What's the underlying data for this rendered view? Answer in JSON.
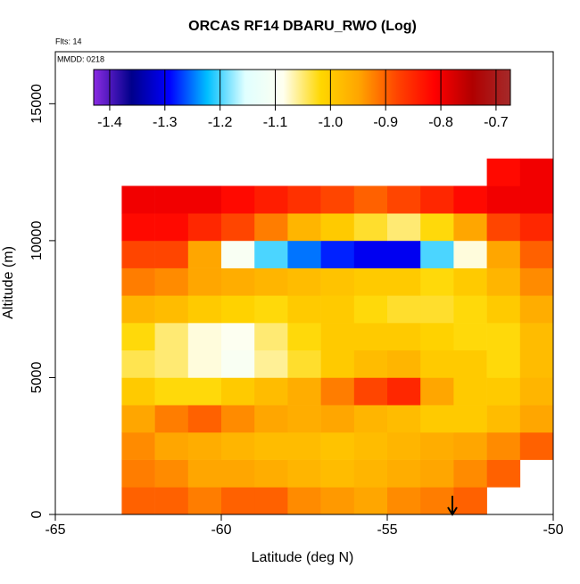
{
  "chart_data": {
    "type": "heatmap",
    "title": "ORCAS RF14 DBARU_RWO (Log)",
    "annotations": [
      "Flts: 14",
      "MMDD: 0218"
    ],
    "x_label": "Latitude (deg N)",
    "y_label": "Altitude (m)",
    "xlim": [
      -65,
      -50
    ],
    "xticks": [
      -65,
      -60,
      -55,
      -50
    ],
    "ylim": [
      0,
      16900
    ],
    "yticks": [
      0,
      5000,
      10000,
      15000
    ],
    "xbins": [
      -63,
      -62,
      -61,
      -60,
      -59,
      -58,
      -57,
      -56,
      -55,
      -54,
      -53,
      -52,
      -51,
      -50
    ],
    "ybins": [
      0,
      1000,
      2000,
      3000,
      4000,
      5000,
      6000,
      7000,
      8000,
      9000,
      10000,
      11000,
      12000,
      13000
    ],
    "z": [
      [
        -0.9,
        -0.9,
        -0.92,
        -0.9,
        -0.9,
        -0.93,
        -0.94,
        -0.95,
        -0.93,
        -0.92,
        -0.9,
        null,
        null
      ],
      [
        -0.92,
        -0.93,
        -0.95,
        -0.95,
        -0.96,
        -0.97,
        -0.98,
        -0.97,
        -0.96,
        -0.95,
        -0.93,
        -0.9,
        null
      ],
      [
        -0.93,
        -0.95,
        -0.96,
        -0.97,
        -0.98,
        -0.98,
        -0.99,
        -0.98,
        -0.97,
        -0.96,
        -0.95,
        -0.93,
        -0.9
      ],
      [
        -0.95,
        -0.92,
        -0.9,
        -0.93,
        -0.95,
        -0.96,
        -0.95,
        -0.97,
        -0.98,
        -1.0,
        -1.0,
        -0.98,
        -0.95
      ],
      [
        -1.0,
        -1.02,
        -1.02,
        -1.0,
        -0.98,
        -0.96,
        -0.92,
        -0.88,
        -0.85,
        -0.95,
        -1.0,
        -1.0,
        -0.97
      ],
      [
        -1.04,
        -1.05,
        -1.08,
        -1.1,
        -1.06,
        -1.03,
        -1.0,
        -0.98,
        -0.97,
        -1.0,
        -1.0,
        -1.02,
        -0.98
      ],
      [
        -1.02,
        -1.05,
        -1.08,
        -1.09,
        -1.05,
        -1.02,
        -1.0,
        -1.0,
        -1.0,
        -1.01,
        -1.02,
        -1.02,
        -0.98
      ],
      [
        -0.97,
        -0.98,
        -1.0,
        -1.01,
        -1.02,
        -1.0,
        -1.0,
        -1.02,
        -1.03,
        -1.03,
        -1.02,
        -1.0,
        -0.96
      ],
      [
        -0.92,
        -0.93,
        -0.95,
        -0.96,
        -0.97,
        -0.98,
        -0.99,
        -1.0,
        -1.0,
        -1.02,
        -1.0,
        -0.97,
        -0.93
      ],
      [
        -0.88,
        -0.88,
        -0.95,
        -1.1,
        -1.2,
        -1.25,
        -1.28,
        -1.3,
        -1.3,
        -1.2,
        -1.08,
        -0.95,
        -0.9
      ],
      [
        -0.82,
        -0.82,
        -0.85,
        -0.88,
        -0.92,
        -0.97,
        -1.0,
        -1.03,
        -1.05,
        -1.02,
        -0.95,
        -0.88,
        -0.85
      ],
      [
        -0.8,
        -0.8,
        -0.8,
        -0.82,
        -0.84,
        -0.86,
        -0.88,
        -0.9,
        -0.88,
        -0.85,
        -0.82,
        -0.8,
        -0.8
      ],
      [
        null,
        null,
        null,
        null,
        null,
        null,
        null,
        null,
        null,
        null,
        null,
        -0.82,
        -0.8
      ]
    ],
    "colorbar": {
      "lim": [
        -1.429,
        -0.674
      ],
      "ticks": [
        -1.4,
        -1.3,
        -1.2,
        -1.1,
        {
          "value": -1,
          "label": "-1.0"
        },
        -0.9,
        -0.8,
        -0.7
      ],
      "colors": [
        "#8a2be2",
        "#00008b",
        "#0000ff",
        "#00bfff",
        "#e0ffff",
        "#fffff0",
        "#ffd700",
        "#ffa500",
        "#ff4500",
        "#ff0000",
        "#b00000",
        "#a52a2a"
      ]
    }
  }
}
